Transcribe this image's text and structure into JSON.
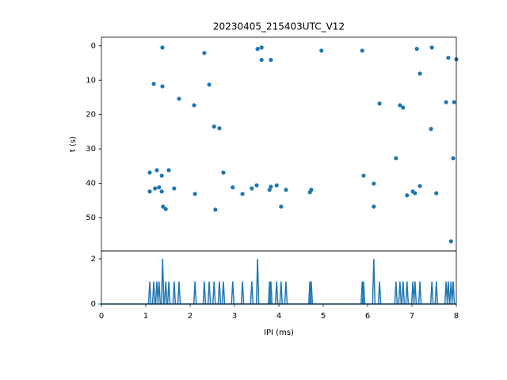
{
  "chart_data": [
    {
      "type": "scatter",
      "title": "20230405_215403UTC_V12",
      "y_label": "t (s)",
      "color": "#1f77b4",
      "x": [
        1.375,
        2.32,
        3.52,
        3.61,
        3.61,
        3.82,
        4.96,
        5.88,
        7.11,
        7.45,
        7.82,
        8.0,
        1.18,
        1.375,
        2.43,
        7.18,
        1.75,
        2.09,
        6.27,
        6.73,
        6.8,
        7.77,
        7.95,
        2.54,
        2.66,
        7.43,
        1.09,
        1.25,
        1.52,
        1.36,
        2.75,
        5.91,
        6.64,
        7.93,
        1.09,
        1.21,
        1.3,
        1.36,
        1.64,
        2.11,
        1.39,
        1.45,
        2.96,
        3.18,
        3.39,
        3.5,
        3.79,
        3.82,
        3.95,
        4.16,
        4.05,
        2.57,
        4.7,
        4.73,
        6.14,
        6.14,
        6.89,
        7.02,
        7.07,
        7.18,
        7.55,
        7.88
      ],
      "values": [
        0.5,
        2.1,
        0.9,
        0.5,
        4.1,
        4.1,
        1.4,
        1.4,
        0.9,
        0.5,
        3.5,
        3.9,
        11.1,
        11.8,
        11.3,
        8.1,
        15.4,
        17.3,
        16.8,
        17.3,
        18.0,
        16.4,
        16.4,
        23.5,
        24.0,
        24.2,
        36.9,
        36.2,
        36.2,
        37.8,
        36.9,
        37.8,
        32.7,
        32.7,
        42.4,
        41.5,
        41.2,
        42.4,
        41.5,
        43.1,
        46.8,
        47.5,
        41.2,
        43.1,
        41.5,
        40.6,
        41.9,
        41.0,
        40.6,
        41.9,
        46.8,
        47.7,
        42.6,
        41.9,
        40.1,
        46.8,
        43.5,
        42.4,
        42.9,
        40.8,
        42.9,
        56.9
      ],
      "xlim": [
        0,
        8
      ],
      "ylim": [
        -2.5,
        59.7
      ],
      "y_inverted": true,
      "yticks": [
        0,
        10,
        20,
        30,
        40,
        50
      ]
    },
    {
      "type": "spikes",
      "x_label": "IPI (ms)",
      "color": "#1f77b4",
      "x": [
        1.09,
        1.18,
        1.25,
        1.3,
        1.38,
        1.45,
        1.52,
        1.64,
        1.75,
        2.11,
        2.32,
        2.43,
        2.54,
        2.66,
        2.75,
        2.96,
        3.18,
        3.39,
        3.52,
        3.79,
        3.82,
        3.95,
        4.05,
        4.16,
        4.7,
        4.73,
        5.88,
        5.91,
        6.14,
        6.27,
        6.64,
        6.73,
        6.8,
        6.89,
        7.02,
        7.07,
        7.18,
        7.45,
        7.55,
        7.77,
        7.82,
        7.88,
        7.93
      ],
      "values": [
        1,
        1,
        1,
        1,
        2,
        1,
        1,
        1,
        1,
        1,
        1,
        1,
        1,
        1,
        1,
        1,
        1,
        1,
        2,
        1,
        1,
        1,
        1,
        1,
        1,
        1,
        1,
        1,
        2,
        1,
        1,
        1,
        1,
        1,
        1,
        1,
        1,
        1,
        1,
        1,
        1,
        1,
        1
      ],
      "xlim": [
        0,
        8
      ],
      "ylim": [
        0,
        2.35
      ],
      "xticks": [
        0,
        1,
        2,
        3,
        4,
        5,
        6,
        7,
        8
      ],
      "yticks": [
        0,
        2
      ]
    }
  ]
}
